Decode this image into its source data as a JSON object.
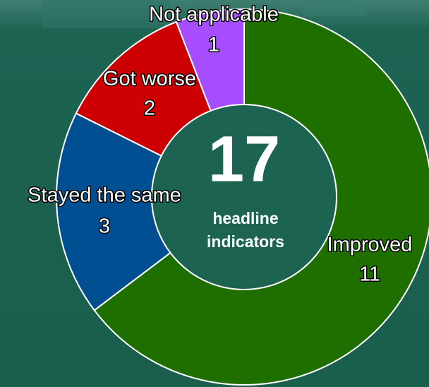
{
  "chart_data": {
    "type": "donut",
    "categories": [
      "Improved",
      "Stayed the same",
      "Got worse",
      "Not applicable"
    ],
    "values": [
      11,
      3,
      2,
      1
    ],
    "colors": [
      "#1f6e00",
      "#004f92",
      "#cc0000",
      "#a64dff"
    ],
    "center": {
      "value": 17,
      "label": "headline indicators"
    }
  }
}
